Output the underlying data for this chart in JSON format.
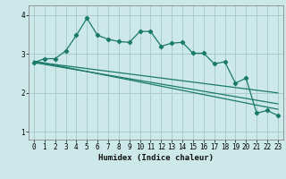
{
  "xlabel": "Humidex (Indice chaleur)",
  "ylabel": "",
  "bg_color": "#cce8e8",
  "grid_color": "#aacccc",
  "line_color": "#1a7a6a",
  "xlim": [
    -0.5,
    23.5
  ],
  "ylim": [
    0.8,
    4.25
  ],
  "xticks": [
    0,
    1,
    2,
    3,
    4,
    5,
    6,
    7,
    8,
    9,
    10,
    11,
    12,
    13,
    14,
    15,
    16,
    17,
    18,
    19,
    20,
    21,
    22,
    23
  ],
  "yticks": [
    1,
    2,
    3,
    4
  ],
  "line1_x": [
    0,
    1,
    2,
    3,
    4,
    5,
    6,
    7,
    8,
    9,
    10,
    11,
    12,
    13,
    14,
    15,
    16,
    17,
    18,
    19,
    20,
    21,
    22,
    23
  ],
  "line1_y": [
    2.78,
    2.88,
    2.88,
    3.08,
    3.48,
    3.92,
    3.48,
    3.38,
    3.32,
    3.3,
    3.58,
    3.58,
    3.2,
    3.28,
    3.3,
    3.02,
    3.02,
    2.75,
    2.8,
    2.25,
    2.38,
    1.48,
    1.55,
    1.42
  ],
  "line2_x": [
    0,
    23
  ],
  "line2_y": [
    2.78,
    1.72
  ],
  "line3_x": [
    0,
    23
  ],
  "line3_y": [
    2.8,
    2.0
  ],
  "line4_x": [
    0,
    23
  ],
  "line4_y": [
    2.82,
    1.58
  ]
}
